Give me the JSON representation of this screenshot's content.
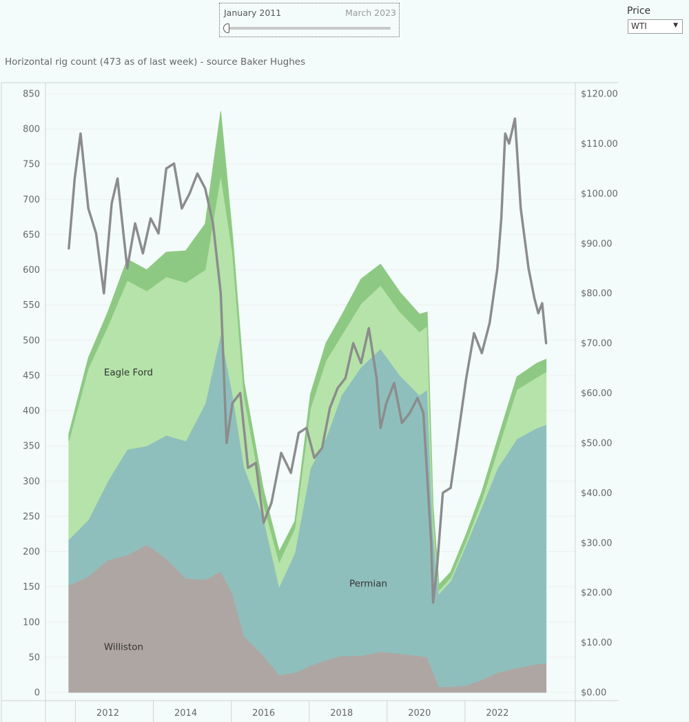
{
  "date_filter": {
    "start_label": "January 2011",
    "end_label": "March 2023"
  },
  "price_filter": {
    "label": "Price",
    "selected": "WTI"
  },
  "chart_title": "Horizontal rig count (473 as of last week) - source Baker Hughes",
  "chart_data": {
    "type": "area",
    "x_label": "",
    "left_axis": {
      "min": 0,
      "max": 850,
      "ticks": [
        0,
        50,
        100,
        150,
        200,
        250,
        300,
        350,
        400,
        450,
        500,
        550,
        600,
        650,
        700,
        750,
        800,
        850
      ]
    },
    "right_axis": {
      "min": 0,
      "max": 120,
      "ticks": [
        0,
        10,
        20,
        30,
        40,
        50,
        60,
        70,
        80,
        90,
        100,
        110,
        120
      ],
      "tick_labels": [
        "$0.00",
        "$10.00",
        "$20.00",
        "$30.00",
        "$40.00",
        "$50.00",
        "$60.00",
        "$70.00",
        "$80.00",
        "$90.00",
        "$100.00",
        "$110.00",
        "$120.00"
      ]
    },
    "x_axis": {
      "min": 2010.4,
      "max": 2024.0,
      "ticks": [
        2012,
        2014,
        2016,
        2018,
        2020,
        2022
      ]
    },
    "x": [
      2011.0,
      2011.5,
      2012.0,
      2012.5,
      2013.0,
      2013.5,
      2014.0,
      2014.5,
      2014.9,
      2015.2,
      2015.5,
      2016.0,
      2016.4,
      2016.8,
      2017.2,
      2017.6,
      2018.0,
      2018.5,
      2019.0,
      2019.5,
      2020.0,
      2020.2,
      2020.35,
      2020.5,
      2020.8,
      2021.2,
      2021.6,
      2022.0,
      2022.5,
      2023.0,
      2023.25
    ],
    "series": [
      {
        "name": "Williston",
        "type": "stacked-area",
        "color": "#aea6a3",
        "values": [
          152,
          165,
          188,
          195,
          210,
          190,
          162,
          160,
          172,
          140,
          80,
          52,
          25,
          28,
          38,
          46,
          52,
          52,
          58,
          55,
          52,
          50,
          30,
          8,
          8,
          10,
          18,
          28,
          35,
          40,
          42
        ]
      },
      {
        "name": "Permian",
        "type": "stacked-area",
        "color": "#8fbfbc",
        "values": [
          65,
          80,
          112,
          150,
          140,
          175,
          195,
          250,
          338,
          285,
          240,
          195,
          125,
          170,
          280,
          315,
          370,
          410,
          430,
          395,
          370,
          380,
          200,
          132,
          150,
          200,
          245,
          290,
          325,
          335,
          338
        ]
      },
      {
        "name": "Eagle Ford",
        "type": "stacked-area",
        "color": "#b5e3a9",
        "values": [
          140,
          215,
          220,
          240,
          220,
          225,
          225,
          190,
          225,
          200,
          100,
          20,
          35,
          35,
          85,
          110,
          85,
          90,
          90,
          90,
          90,
          90,
          20,
          5,
          5,
          5,
          10,
          25,
          70,
          72,
          75
        ]
      },
      {
        "name": "",
        "type": "stacked-area",
        "color": "#8ec983",
        "values": [
          10,
          15,
          20,
          30,
          30,
          35,
          45,
          65,
          90,
          25,
          20,
          20,
          15,
          10,
          20,
          25,
          28,
          35,
          30,
          28,
          25,
          20,
          15,
          8,
          8,
          10,
          12,
          15,
          18,
          20,
          18
        ]
      },
      {
        "name": "",
        "type": "line",
        "axis": "right",
        "color": "#8c8c8c",
        "x": [
          2011.0,
          2011.15,
          2011.3,
          2011.5,
          2011.7,
          2011.9,
          2012.1,
          2012.25,
          2012.4,
          2012.5,
          2012.7,
          2012.9,
          2013.1,
          2013.3,
          2013.5,
          2013.7,
          2013.9,
          2014.1,
          2014.3,
          2014.5,
          2014.7,
          2014.9,
          2015.05,
          2015.2,
          2015.4,
          2015.6,
          2015.8,
          2016.0,
          2016.2,
          2016.45,
          2016.7,
          2016.9,
          2017.1,
          2017.3,
          2017.5,
          2017.7,
          2017.9,
          2018.1,
          2018.3,
          2018.5,
          2018.7,
          2018.9,
          2019.0,
          2019.15,
          2019.35,
          2019.55,
          2019.75,
          2019.95,
          2020.1,
          2020.3,
          2020.35,
          2020.45,
          2020.6,
          2020.8,
          2021.0,
          2021.2,
          2021.4,
          2021.6,
          2021.8,
          2022.0,
          2022.1,
          2022.2,
          2022.3,
          2022.45,
          2022.6,
          2022.8,
          2022.95,
          2023.05,
          2023.15,
          2023.25
        ],
        "values": [
          89,
          103,
          112,
          97,
          92,
          80,
          98,
          103,
          92,
          85,
          94,
          88,
          95,
          92,
          105,
          106,
          97,
          100,
          104,
          101,
          94,
          80,
          50,
          58,
          60,
          45,
          46,
          34,
          38,
          48,
          44,
          52,
          53,
          47,
          49,
          57,
          61,
          63,
          70,
          66,
          73,
          63,
          53,
          58,
          62,
          54,
          56,
          59,
          56,
          30,
          18,
          25,
          40,
          41,
          52,
          63,
          72,
          68,
          74,
          85,
          95,
          112,
          110,
          115,
          97,
          85,
          79,
          76,
          78,
          70
        ]
      }
    ],
    "region_labels": [
      {
        "text": "Eagle Ford",
        "x": 2011.9,
        "y": 450
      },
      {
        "text": "Permian",
        "x": 2018.2,
        "y": 150
      },
      {
        "text": "Williston",
        "x": 2011.9,
        "y": 60
      }
    ]
  }
}
